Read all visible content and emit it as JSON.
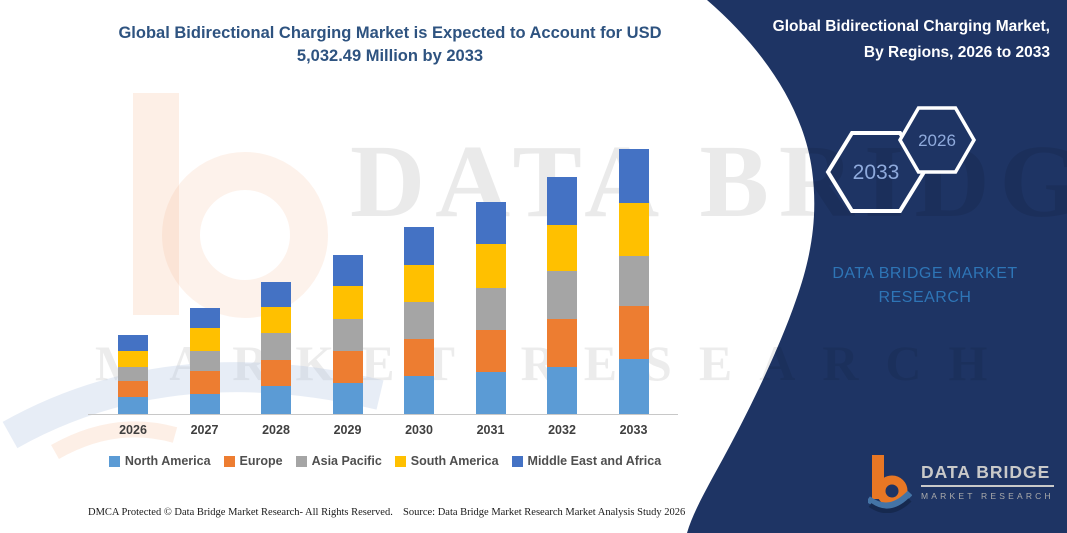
{
  "header": {
    "title_line1": "Global Bidirectional Charging Market is Expected to Account for USD",
    "title_line2": "5,032.49 Million by 2033"
  },
  "panel": {
    "title_line1": "Global Bidirectional Charging Market,",
    "title_line2": "By Regions, 2026 to 2033",
    "hexagon_labels": [
      "2033",
      "2026"
    ],
    "brand_line1": "DATA BRIDGE MARKET",
    "brand_line2": "RESEARCH",
    "colors": {
      "background": "#1E3464",
      "hexagon_border": "#FFFFFF",
      "hexagon_label": "#8FAADC",
      "brand_text": "#2E75B6"
    }
  },
  "logo": {
    "title": "DATA BRIDGE",
    "subtitle": "MARKET RESEARCH",
    "b_color": "#E87724",
    "swoosh_color": "#4474A6"
  },
  "watermark": {
    "row1": "DATA BRIDGE",
    "row2": "MARKET RESEARCH"
  },
  "footer": {
    "left": "DMCA Protected © Data Bridge Market Research-  All Rights Reserved.",
    "right": "Source: Data Bridge Market Research  Market Analysis Study 2026"
  },
  "chart_data": {
    "type": "bar",
    "stacked": true,
    "title": "Global Bidirectional Charging Market is Expected to Account for USD 5,032.49 Million by 2033",
    "unit": "USD Million",
    "categories": [
      "2026",
      "2027",
      "2028",
      "2029",
      "2030",
      "2031",
      "2032",
      "2033"
    ],
    "series": [
      {
        "name": "North America",
        "color": "#5B9BD5",
        "values": [
          330,
          375,
          525,
          590,
          720,
          805,
          900,
          1040
        ]
      },
      {
        "name": "Europe",
        "color": "#ED7D31",
        "values": [
          300,
          445,
          505,
          615,
          705,
          795,
          900,
          1020
        ]
      },
      {
        "name": "Asia Pacific",
        "color": "#A5A5A5",
        "values": [
          265,
          380,
          505,
          610,
          710,
          805,
          920,
          945
        ]
      },
      {
        "name": "South America",
        "color": "#FFC000",
        "values": [
          305,
          430,
          505,
          615,
          700,
          825,
          875,
          1012.49
        ]
      },
      {
        "name": "Middle East and Africa",
        "color": "#4472C4",
        "values": [
          305,
          390,
          475,
          590,
          715,
          800,
          910,
          1015
        ]
      }
    ],
    "totals": [
      1505,
      2020,
      2515,
      3020,
      3550,
      4030,
      4505,
      5032.49
    ],
    "ylim": [
      0,
      5100
    ],
    "xlabel": "",
    "ylabel": "",
    "grid": false,
    "y_axis_visible": false,
    "legend_position": "bottom",
    "values_are_estimated_from_pixels": true
  }
}
